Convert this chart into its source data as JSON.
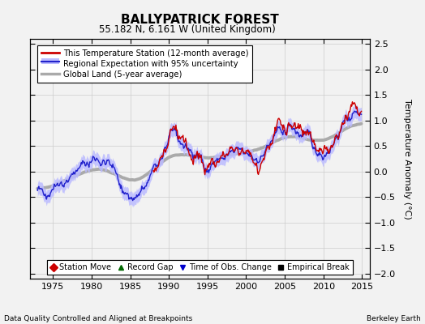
{
  "title": "BALLYPATRICK FOREST",
  "subtitle": "55.182 N, 6.161 W (United Kingdom)",
  "ylabel": "Temperature Anomaly (°C)",
  "xlim": [
    1972,
    2016
  ],
  "ylim": [
    -2.1,
    2.6
  ],
  "yticks": [
    -2,
    -1.5,
    -1,
    -0.5,
    0,
    0.5,
    1,
    1.5,
    2,
    2.5
  ],
  "xticks": [
    1975,
    1980,
    1985,
    1990,
    1995,
    2000,
    2005,
    2010,
    2015
  ],
  "footer_left": "Data Quality Controlled and Aligned at Breakpoints",
  "footer_right": "Berkeley Earth",
  "legend_entries": [
    "This Temperature Station (12-month average)",
    "Regional Expectation with 95% uncertainty",
    "Global Land (5-year average)"
  ],
  "legend_markers": [
    {
      "label": "Station Move",
      "color": "#cc0000",
      "marker": "D"
    },
    {
      "label": "Record Gap",
      "color": "#006600",
      "marker": "^"
    },
    {
      "label": "Time of Obs. Change",
      "color": "#0000cc",
      "marker": "v"
    },
    {
      "label": "Empirical Break",
      "color": "#000000",
      "marker": "s"
    }
  ],
  "station_color": "#cc0000",
  "regional_color": "#2222cc",
  "regional_fill_color": "#bbbbff",
  "global_color": "#aaaaaa",
  "background_color": "#f2f2f2",
  "grid_color": "#cccccc"
}
